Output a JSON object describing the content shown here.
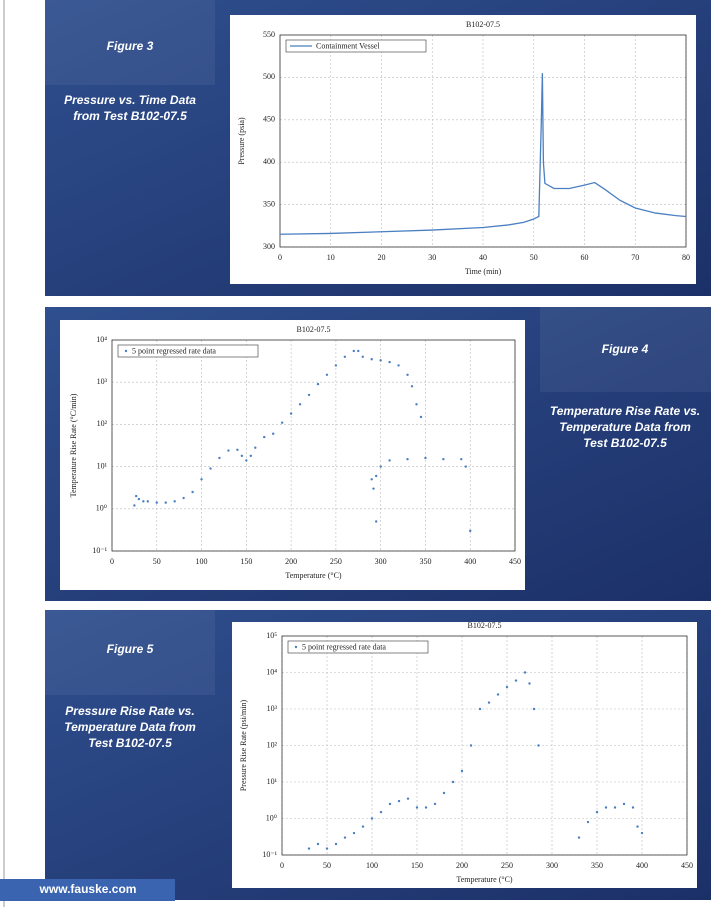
{
  "panels": [
    {
      "figure": "Figure 3",
      "caption": [
        "Pressure vs. Time Data",
        "from Test B102-07.5"
      ]
    },
    {
      "figure": "Figure 4",
      "caption": [
        "Temperature Rise Rate vs.",
        "Temperature Data from",
        "Test B102-07.5"
      ]
    },
    {
      "figure": "Figure 5",
      "caption": [
        "Pressure Rise Rate vs.",
        "Temperature Data from",
        "Test B102-07.5"
      ]
    }
  ],
  "footer": "www.fauske.com",
  "chart_data": [
    {
      "type": "line",
      "title": "B102-07.5",
      "x_label": "Time (min)",
      "y_label": "Pressure (psia)",
      "legend": "upper left",
      "grid": true,
      "x": [
        0,
        10,
        20,
        30,
        40,
        45,
        48,
        50,
        51,
        51.5,
        51.7,
        51.9,
        52.2,
        54,
        57,
        60,
        62,
        64,
        67,
        70,
        74,
        78,
        80
      ],
      "series": [
        {
          "name": "Containment Vessel",
          "color": "#4a7fc1",
          "values": [
            315,
            316,
            318,
            320,
            323,
            326,
            329,
            333,
            336,
            450,
            505,
            400,
            375,
            369,
            369,
            373,
            376,
            368,
            355,
            346,
            340,
            337,
            336
          ]
        }
      ],
      "xlim": [
        0,
        80
      ],
      "xticks": [
        0,
        10,
        20,
        30,
        40,
        50,
        60,
        70,
        80
      ],
      "ylim": [
        300,
        550
      ],
      "yticks": [
        300,
        350,
        400,
        450,
        500,
        550
      ]
    },
    {
      "type": "scatter",
      "title": "B102-07.5",
      "x_label": "Temperature (°C)",
      "y_label": "Temperature Rise Rate (°C/min)",
      "legend": "upper left",
      "grid": true,
      "log_y": true,
      "x": [
        25,
        27,
        30,
        35,
        40,
        50,
        60,
        70,
        80,
        90,
        100,
        110,
        120,
        130,
        140,
        145,
        150,
        155,
        160,
        170,
        180,
        190,
        200,
        210,
        220,
        230,
        240,
        250,
        260,
        270,
        275,
        280,
        290,
        300,
        310,
        320,
        330,
        335,
        340,
        345,
        290,
        292,
        295,
        300,
        310,
        330,
        350,
        370,
        390,
        395,
        295,
        400
      ],
      "series": [
        {
          "name": "5 point regressed rate data",
          "color": "#4a7fc1",
          "values": [
            1.2,
            2,
            1.7,
            1.5,
            1.5,
            1.4,
            1.4,
            1.5,
            1.8,
            2.5,
            5,
            9,
            16,
            24,
            25,
            18,
            14,
            18,
            28,
            50,
            60,
            110,
            180,
            300,
            500,
            900,
            1500,
            2500,
            4000,
            5500,
            5500,
            4000,
            3500,
            3300,
            3000,
            2500,
            1500,
            800,
            300,
            150,
            5,
            3,
            6,
            10,
            14,
            15,
            16,
            15,
            15,
            10,
            0.5,
            0.3
          ]
        }
      ],
      "xlim": [
        0,
        450
      ],
      "xticks": [
        0,
        50,
        100,
        150,
        200,
        250,
        300,
        350,
        400,
        450
      ],
      "ylim": [
        0.1,
        10000
      ],
      "yticks": [
        {
          "value": 0.1,
          "label": "10⁻¹"
        },
        {
          "value": 1,
          "label": "10⁰"
        },
        {
          "value": 10,
          "label": "10¹"
        },
        {
          "value": 100,
          "label": "10²"
        },
        {
          "value": 1000,
          "label": "10³"
        },
        {
          "value": 10000,
          "label": "10⁴"
        }
      ]
    },
    {
      "type": "scatter",
      "title": "B102-07.5",
      "x_label": "Temperature (°C)",
      "y_label": "Pressure Rise Rate (psi/min)",
      "legend": "upper left",
      "grid": true,
      "log_y": true,
      "x": [
        30,
        40,
        50,
        60,
        70,
        80,
        90,
        100,
        110,
        120,
        130,
        140,
        150,
        160,
        170,
        180,
        190,
        200,
        210,
        220,
        230,
        240,
        250,
        260,
        270,
        275,
        280,
        285,
        330,
        340,
        350,
        360,
        370,
        380,
        390,
        395,
        400
      ],
      "series": [
        {
          "name": "5 point regressed rate data",
          "color": "#4a7fc1",
          "values": [
            0.15,
            0.2,
            0.15,
            0.2,
            0.3,
            0.4,
            0.6,
            1,
            1.5,
            2.5,
            3,
            3.5,
            2,
            2,
            2.5,
            5,
            10,
            20,
            100,
            1000,
            1500,
            2500,
            4000,
            6000,
            10000,
            5000,
            1000,
            100,
            0.3,
            0.8,
            1.5,
            2,
            2,
            2.5,
            2,
            0.6,
            0.4
          ]
        }
      ],
      "xlim": [
        0,
        450
      ],
      "xticks": [
        0,
        50,
        100,
        150,
        200,
        250,
        300,
        350,
        400,
        450
      ],
      "ylim": [
        0.1,
        100000
      ],
      "yticks": [
        {
          "value": 0.1,
          "label": "10⁻¹"
        },
        {
          "value": 1,
          "label": "10⁰"
        },
        {
          "value": 10,
          "label": "10¹"
        },
        {
          "value": 100,
          "label": "10²"
        },
        {
          "value": 1000,
          "label": "10³"
        },
        {
          "value": 10000,
          "label": "10⁴"
        },
        {
          "value": 100000,
          "label": "10⁵"
        }
      ]
    }
  ]
}
